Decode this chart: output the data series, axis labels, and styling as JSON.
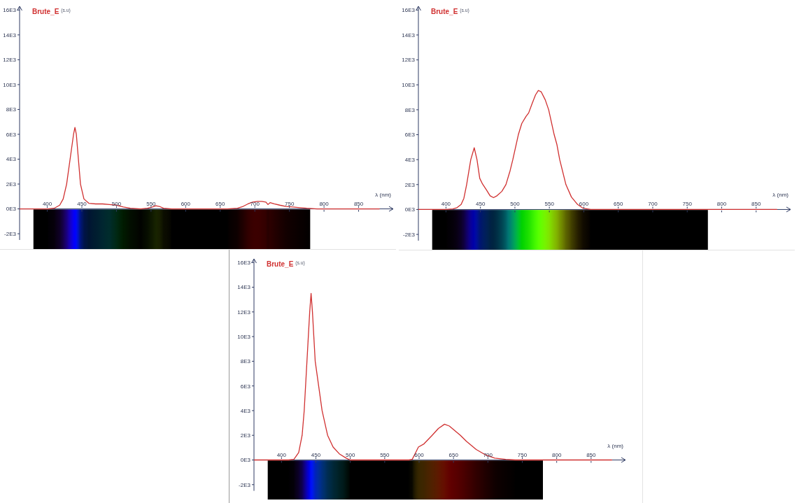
{
  "chart_data": [
    {
      "type": "line",
      "xlabel": "λ (nm)",
      "ylabel": "Brute_E $^{(s.u)}$",
      "xlim": [
        360,
        900
      ],
      "xticks": [
        400,
        450,
        500,
        550,
        600,
        650,
        700,
        750,
        800,
        850
      ],
      "ylim": [
        -2500,
        16300
      ],
      "yticks": [
        {
          "value": -2000,
          "label": "-2E3"
        },
        {
          "value": 0,
          "label": "0E3"
        },
        {
          "value": 2000,
          "label": "2E3"
        },
        {
          "value": 4000,
          "label": "4E3"
        },
        {
          "value": 6000,
          "label": "6E3"
        },
        {
          "value": 8000,
          "label": "8E3"
        },
        {
          "value": 10000,
          "label": "10E3"
        },
        {
          "value": 12000,
          "label": "12E3"
        },
        {
          "value": 14000,
          "label": "14E3"
        },
        {
          "value": 16000,
          "label": "16E3"
        }
      ],
      "x": [
        360,
        380,
        400,
        410,
        418,
        423,
        428,
        433,
        438,
        440,
        442,
        445,
        448,
        453,
        460,
        470,
        480,
        490,
        500,
        510,
        520,
        535,
        545,
        552,
        557,
        562,
        568,
        580,
        620,
        660,
        675,
        683,
        690,
        697,
        704,
        710,
        716,
        719,
        722,
        728,
        736,
        745,
        755,
        765,
        775,
        790,
        830,
        880
      ],
      "series": [
        {
          "color": "#d03030",
          "values": [
            0,
            0,
            0,
            50,
            300,
            800,
            2000,
            4000,
            6000,
            6550,
            6000,
            4000,
            2000,
            800,
            450,
            400,
            400,
            350,
            300,
            150,
            50,
            0,
            50,
            150,
            250,
            200,
            50,
            0,
            0,
            0,
            50,
            200,
            400,
            550,
            600,
            600,
            550,
            350,
            500,
            400,
            300,
            200,
            150,
            100,
            50,
            0,
            0,
            0
          ]
        }
      ]
    },
    {
      "type": "line",
      "xlabel": "λ (nm)",
      "ylabel": "Brute_E $^{(s.u)}$",
      "xlim": [
        360,
        900
      ],
      "xticks": [
        400,
        450,
        500,
        550,
        600,
        650,
        700,
        750,
        800,
        850
      ],
      "ylim": [
        -2500,
        16300
      ],
      "yticks": [
        {
          "value": -2000,
          "label": "-2E3"
        },
        {
          "value": 0,
          "label": "0E3"
        },
        {
          "value": 2000,
          "label": "2E3"
        },
        {
          "value": 4000,
          "label": "4E3"
        },
        {
          "value": 6000,
          "label": "6E3"
        },
        {
          "value": 8000,
          "label": "8E3"
        },
        {
          "value": 10000,
          "label": "10E3"
        },
        {
          "value": 12000,
          "label": "12E3"
        },
        {
          "value": 14000,
          "label": "14E3"
        },
        {
          "value": 16000,
          "label": "16E3"
        }
      ],
      "x": [
        360,
        380,
        400,
        410,
        416,
        422,
        426,
        430,
        436,
        441,
        445,
        449,
        453,
        459,
        464,
        469,
        474,
        481,
        487,
        493,
        497,
        505,
        510,
        516,
        520,
        525,
        530,
        534,
        538,
        544,
        549,
        557,
        561,
        565,
        574,
        582,
        591,
        599,
        610,
        650,
        700,
        750,
        800,
        880
      ],
      "series": [
        {
          "color": "#d03030",
          "values": [
            0,
            0,
            0,
            50,
            150,
            400,
            900,
            2000,
            4000,
            4950,
            4000,
            2500,
            2050,
            1550,
            1100,
            950,
            1100,
            1450,
            2000,
            3100,
            4000,
            6000,
            6900,
            7450,
            7750,
            8500,
            9200,
            9550,
            9450,
            8800,
            8000,
            6000,
            5200,
            4000,
            2000,
            1000,
            400,
            100,
            0,
            0,
            0,
            0,
            0,
            0
          ]
        }
      ]
    },
    {
      "type": "line",
      "xlabel": "λ (nm)",
      "ylabel": "Brute_E $^{(s.u)}$",
      "xlim": [
        360,
        900
      ],
      "xticks": [
        400,
        450,
        500,
        550,
        600,
        650,
        700,
        750,
        800,
        850
      ],
      "ylim": [
        -2500,
        16300
      ],
      "yticks": [
        {
          "value": -2000,
          "label": "-2E3"
        },
        {
          "value": 0,
          "label": "0E3"
        },
        {
          "value": 2000,
          "label": "2E3"
        },
        {
          "value": 4000,
          "label": "4E3"
        },
        {
          "value": 6000,
          "label": "6E3"
        },
        {
          "value": 8000,
          "label": "8E3"
        },
        {
          "value": 10000,
          "label": "10E3"
        },
        {
          "value": 12000,
          "label": "12E3"
        },
        {
          "value": 14000,
          "label": "14E3"
        },
        {
          "value": 16000,
          "label": "16E3"
        }
      ],
      "x": [
        360,
        380,
        400,
        410,
        418,
        425,
        430,
        433,
        435,
        437,
        439,
        441,
        443,
        445,
        447,
        449,
        454,
        459,
        467,
        475,
        484,
        494,
        500,
        540,
        585,
        590,
        595,
        599,
        607,
        619,
        628,
        637,
        644,
        660,
        669,
        683,
        697,
        710,
        726,
        740,
        800,
        880
      ],
      "series": [
        {
          "color": "#d03030",
          "values": [
            0,
            0,
            0,
            0,
            50,
            600,
            2000,
            4000,
            6000,
            8000,
            10000,
            12000,
            13500,
            12000,
            10000,
            8000,
            6000,
            4000,
            2000,
            1050,
            500,
            150,
            0,
            0,
            0,
            50,
            600,
            1050,
            1300,
            2000,
            2550,
            2900,
            2750,
            2000,
            1500,
            850,
            400,
            150,
            50,
            0,
            0,
            0
          ]
        }
      ]
    }
  ]
}
